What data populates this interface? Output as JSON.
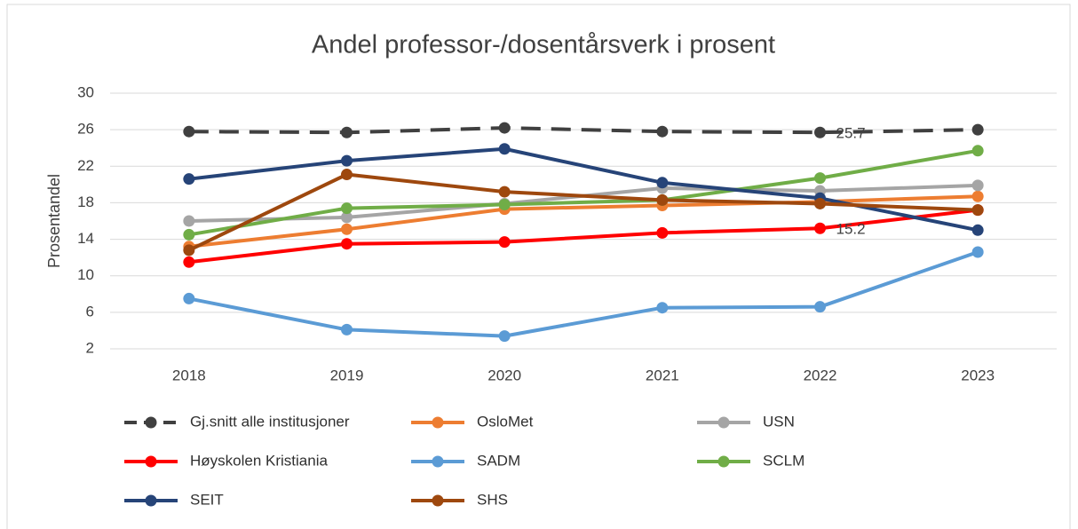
{
  "chart_data": {
    "type": "line",
    "title": "Andel professor-/dosentårsverk i prosent",
    "y_label": "Prosentandel",
    "categories": [
      "2018",
      "2019",
      "2020",
      "2021",
      "2022",
      "2023"
    ],
    "ylim": [
      2,
      30
    ],
    "yticks": [
      2,
      6,
      10,
      14,
      18,
      22,
      26,
      30
    ],
    "grid": true,
    "series": [
      {
        "name": "Gj.snitt alle institusjoner",
        "color": "#404040",
        "dashed": true,
        "values": [
          25.8,
          25.7,
          26.2,
          25.8,
          25.7,
          26.0
        ],
        "value_labels": [
          null,
          null,
          null,
          null,
          "25.7",
          null
        ]
      },
      {
        "name": "OsloMet",
        "color": "#ED7D31",
        "values": [
          13.2,
          15.1,
          17.3,
          17.7,
          18.1,
          18.7
        ]
      },
      {
        "name": "USN",
        "color": "#A5A5A5",
        "values": [
          16.0,
          16.4,
          17.9,
          19.6,
          19.3,
          19.9
        ]
      },
      {
        "name": "Høyskolen Kristiania",
        "color": "#FF0000",
        "values": [
          11.5,
          13.5,
          13.7,
          14.7,
          15.2,
          17.2
        ],
        "value_labels": [
          null,
          null,
          null,
          null,
          "15.2",
          null
        ]
      },
      {
        "name": "SADM",
        "color": "#5B9BD5",
        "values": [
          7.5,
          4.1,
          3.4,
          6.5,
          6.6,
          12.6
        ]
      },
      {
        "name": "SCLM",
        "color": "#70AD47",
        "values": [
          14.5,
          17.4,
          17.8,
          18.3,
          20.7,
          23.7
        ]
      },
      {
        "name": "SEIT",
        "color": "#264478",
        "values": [
          20.6,
          22.6,
          23.9,
          20.2,
          18.5,
          15.0
        ]
      },
      {
        "name": "SHS",
        "color": "#9E480E",
        "values": [
          12.8,
          21.1,
          19.2,
          18.3,
          17.9,
          17.2
        ]
      }
    ]
  }
}
